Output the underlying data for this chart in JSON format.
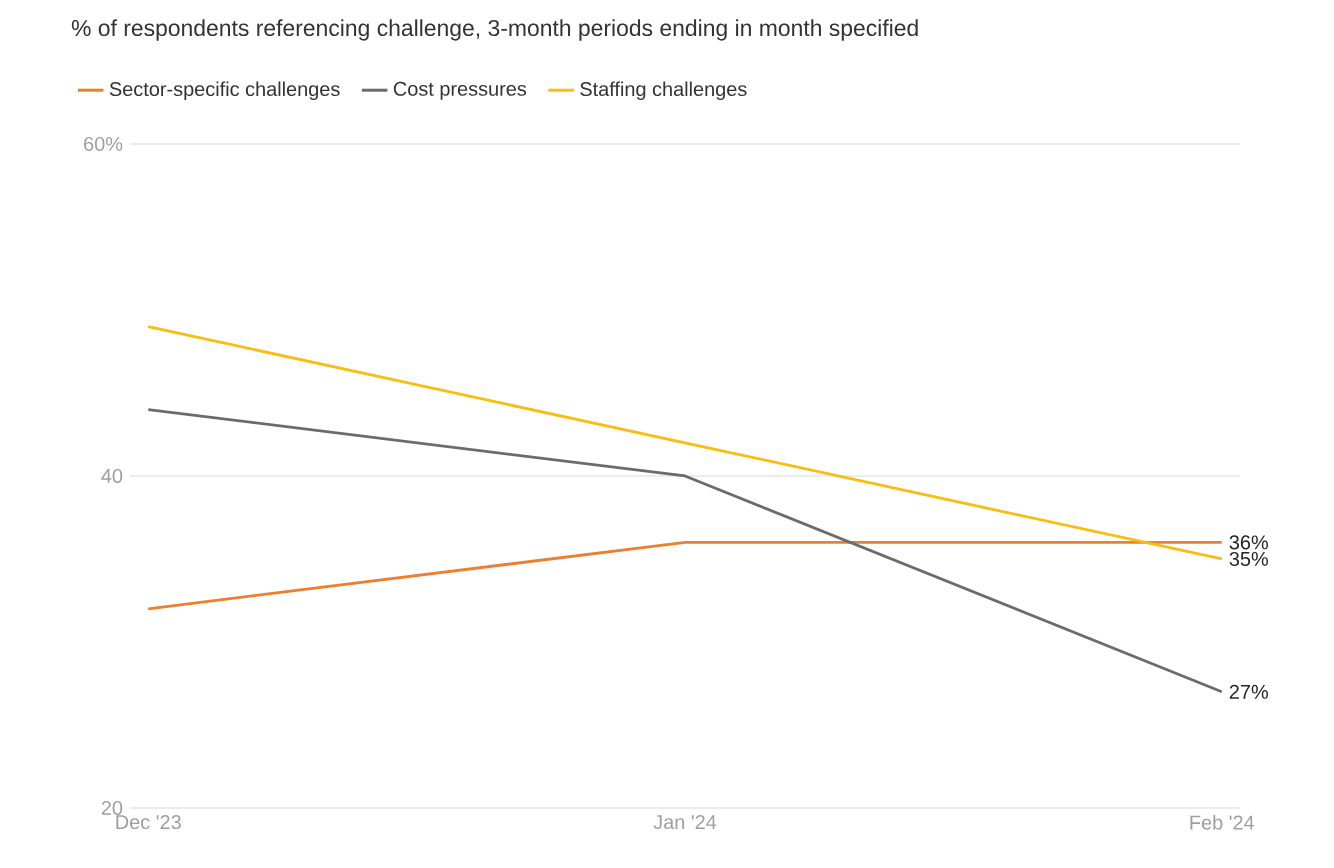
{
  "chart_data": {
    "type": "line",
    "title": "% of respondents referencing challenge, 3-month periods ending in month specified",
    "categories": [
      "Dec '23",
      "Jan '24",
      "Feb '24"
    ],
    "series": [
      {
        "name": "Sector-specific challenges",
        "color": "#ee7d2d",
        "values": [
          32,
          36,
          36
        ],
        "value_labels": [
          null,
          null,
          "36%"
        ]
      },
      {
        "name": "Cost pressures",
        "color": "#6b6b6b",
        "values": [
          44,
          40,
          27
        ],
        "value_labels": [
          null,
          null,
          "27%"
        ]
      },
      {
        "name": "Staffing challenges",
        "color": "#fbbc0f",
        "values": [
          49,
          42,
          35
        ],
        "value_labels": [
          null,
          null,
          "35%"
        ]
      }
    ],
    "ylim": [
      20,
      60
    ],
    "yticks": [
      20,
      40,
      {
        "value": 60,
        "label": "60%"
      }
    ],
    "grid": "y",
    "legend": "top left",
    "marker": "none",
    "line_style": "solid"
  }
}
